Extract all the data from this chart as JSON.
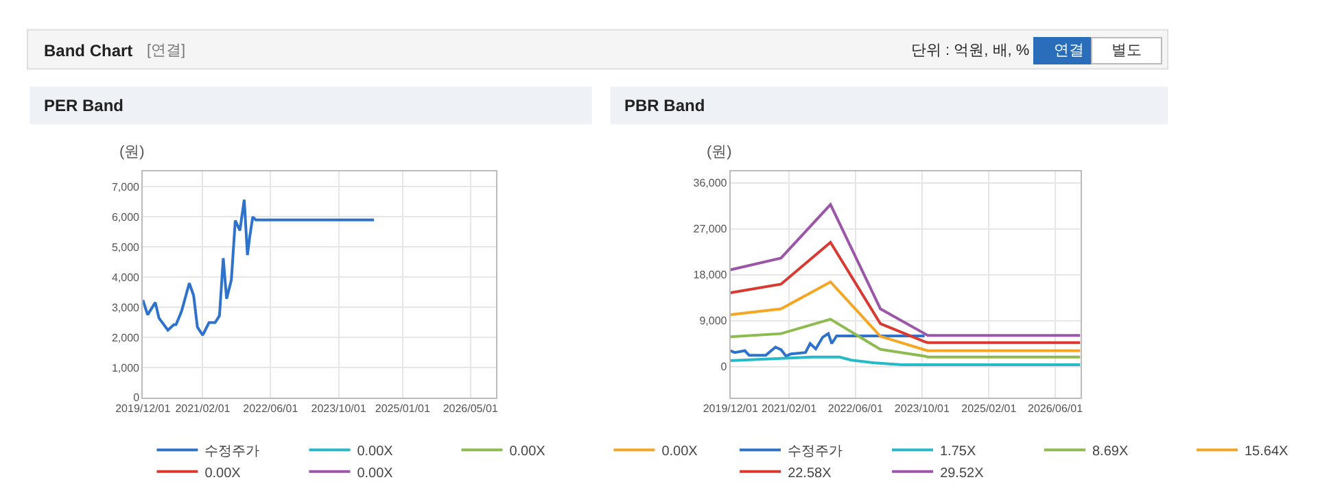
{
  "chart_data": [
    {
      "type": "other",
      "title": "Band Chart",
      "annotations": [
        "[연결]",
        "단위 : 억원, 배, %",
        "연결",
        "별도"
      ]
    },
    {
      "type": "line",
      "title": "PER Band",
      "ylabel": "(원)",
      "legend": "bottom",
      "grid": true,
      "xlim": [
        "2019-12-01",
        "2026-11-01"
      ],
      "xticks": [
        {
          "value": "2019-12-01",
          "label": "2019/12/01"
        },
        {
          "value": "2021-02-01",
          "label": "2021/02/01"
        },
        {
          "value": "2022-06-01",
          "label": "2022/06/01"
        },
        {
          "value": "2023-10-01",
          "label": "2023/10/01"
        },
        {
          "value": "2025-01-01",
          "label": "2025/01/01"
        },
        {
          "value": "2026-05-01",
          "label": "2026/05/01"
        }
      ],
      "ylim": [
        0,
        7500
      ],
      "yticks": [
        0,
        {
          "value": 1000,
          "label": "1,000"
        },
        {
          "value": 2000,
          "label": "2,000"
        },
        {
          "value": 3000,
          "label": "3,000"
        },
        {
          "value": 4000,
          "label": "4,000"
        },
        {
          "value": 5000,
          "label": "5,000"
        },
        {
          "value": 6000,
          "label": "6,000"
        },
        {
          "value": 7000,
          "label": "7,000"
        }
      ],
      "series": [
        {
          "name": "수정주가",
          "color": "#2f72cc",
          "x": [
            "2019-12-01",
            "2020-01-04",
            "2020-02-28",
            "2020-03-25",
            "2020-05-28",
            "2020-07-10",
            "2020-07-25",
            "2020-09-03",
            "2020-10-28",
            "2020-11-28",
            "2020-12-25",
            "2021-02-01",
            "2021-03-18",
            "2021-05-01",
            "2021-06-01",
            "2021-06-28",
            "2021-07-22",
            "2021-08-25",
            "2021-09-22",
            "2021-10-25",
            "2021-11-25",
            "2021-12-18",
            "2022-01-03",
            "2022-01-25",
            "2022-02-15",
            "2024-06-10"
          ],
          "values": [
            3240,
            2750,
            3160,
            2640,
            2240,
            2420,
            2420,
            2870,
            3800,
            3390,
            2340,
            2070,
            2490,
            2490,
            2720,
            4630,
            3280,
            3910,
            5880,
            5550,
            6570,
            4730,
            5330,
            6000,
            5900,
            5900
          ]
        },
        {
          "name": "0.00X",
          "color": "#26b9c7"
        },
        {
          "name": "0.00X",
          "color": "#8dbb4f"
        },
        {
          "name": "0.00X",
          "color": "#f5a623"
        },
        {
          "name": "0.00X",
          "color": "#d83a32"
        },
        {
          "name": "0.00X",
          "color": "#9b56a8"
        }
      ]
    },
    {
      "type": "line",
      "title": "PBR Band",
      "ylabel": "(원)",
      "legend": "bottom",
      "grid": true,
      "xlim": [
        "2019-12-01",
        "2026-12-01"
      ],
      "xticks": [
        {
          "value": "2019-12-01",
          "label": "2019/12/01"
        },
        {
          "value": "2021-02-01",
          "label": "2021/02/01"
        },
        {
          "value": "2022-06-01",
          "label": "2022/06/01"
        },
        {
          "value": "2023-10-01",
          "label": "2023/10/01"
        },
        {
          "value": "2025-02-01",
          "label": "2025/02/01"
        },
        {
          "value": "2026-06-01",
          "label": "2026/06/01"
        }
      ],
      "ylim": [
        -6100,
        38200
      ],
      "yticks": [
        0,
        {
          "value": 9000,
          "label": "9,000"
        },
        {
          "value": 18000,
          "label": "18,000"
        },
        {
          "value": 27000,
          "label": "27,000"
        },
        {
          "value": 36000,
          "label": "36,000"
        }
      ],
      "series": [
        {
          "name": "수정주가",
          "color": "#2f72cc",
          "x": [
            "2019-12-01",
            "2020-01-01",
            "2020-03-15",
            "2020-04-15",
            "2020-08-15",
            "2020-10-25",
            "2020-12-05",
            "2021-01-10",
            "2021-02-15",
            "2021-06-01",
            "2021-07-05",
            "2021-08-15",
            "2021-10-05",
            "2021-11-15",
            "2021-12-10",
            "2022-01-15",
            "2022-02-10",
            "2023-10-20"
          ],
          "values": [
            3090,
            2740,
            3090,
            2200,
            2200,
            3800,
            3270,
            2030,
            2470,
            2740,
            4500,
            3440,
            5740,
            6440,
            4500,
            6000,
            6000,
            6000
          ]
        },
        {
          "name": "1.75X",
          "color": "#26b9c7",
          "x": [
            "2019-12-01",
            "2021-07-20",
            "2022-02-05",
            "2022-05-01",
            "2022-10-18",
            "2023-05-05",
            "2026-12-01"
          ],
          "values": [
            1150,
            1850,
            1850,
            1240,
            710,
            350,
            350
          ]
        },
        {
          "name": "8.69X",
          "color": "#8dbb4f",
          "x": [
            "2019-12-01",
            "2020-12-04",
            "2021-12-01",
            "2022-12-01",
            "2023-10-20",
            "2023-11-12",
            "2026-12-01"
          ],
          "values": [
            5820,
            6440,
            9260,
            3350,
            2030,
            1850,
            1850
          ]
        },
        {
          "name": "15.64X",
          "color": "#f5a623",
          "x": [
            "2019-12-01",
            "2020-12-04",
            "2021-12-01",
            "2022-12-01",
            "2023-10-20",
            "2023-11-12",
            "2026-12-01"
          ],
          "values": [
            10150,
            11300,
            16590,
            5910,
            3260,
            3090,
            3090
          ]
        },
        {
          "name": "22.58X",
          "color": "#d83a32",
          "x": [
            "2019-12-01",
            "2020-12-04",
            "2021-12-01",
            "2022-12-01",
            "2023-10-20",
            "2023-11-12",
            "2026-12-01"
          ],
          "values": [
            14470,
            16150,
            24350,
            8380,
            4850,
            4680,
            4680
          ]
        },
        {
          "name": "29.52X",
          "color": "#9b56a8",
          "x": [
            "2019-12-01",
            "2020-12-04",
            "2021-12-01",
            "2022-12-01",
            "2023-10-20",
            "2023-11-12",
            "2026-12-01"
          ],
          "values": [
            18970,
            21270,
            31770,
            11300,
            6440,
            6090,
            6090
          ]
        }
      ]
    }
  ]
}
